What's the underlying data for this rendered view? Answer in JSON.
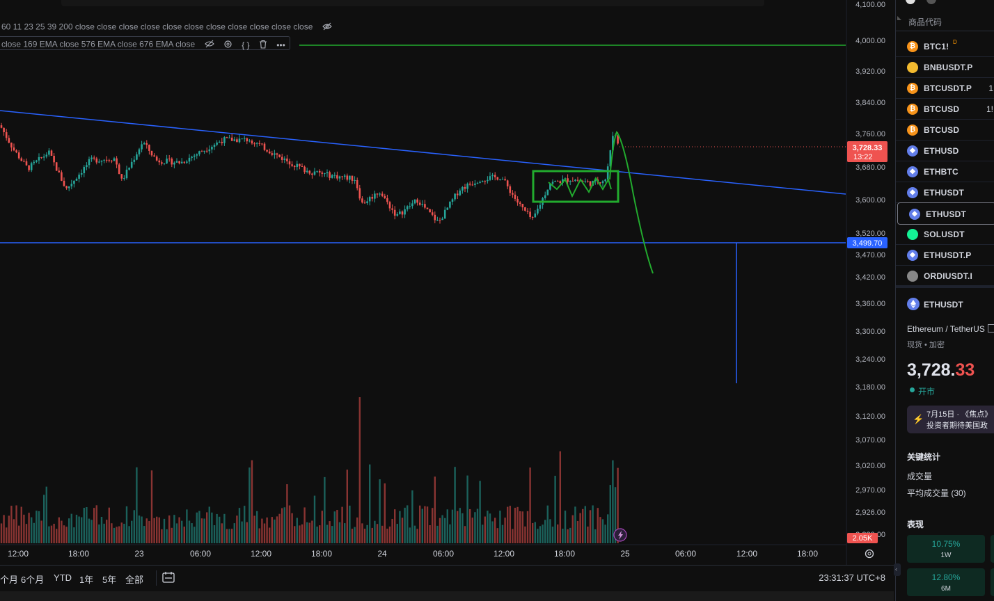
{
  "chart": {
    "indicators_line1": "60 11 23 25 39 200 close close close close close close close close close close close",
    "indicators_line2": "close 169 EMA close 576 EMA close 676 EMA close",
    "price_ticks": [
      "4,100.00",
      "4,000.00",
      "3,920.00",
      "3,840.00",
      "3,760.00",
      "3,680.00",
      "3,600.00",
      "3,520.00",
      "3,470.00",
      "3,420.00",
      "3,360.00",
      "3,300.00",
      "3,240.00",
      "3,180.00",
      "3,120.00",
      "3,070.00",
      "3,020.00",
      "2,970.00",
      "2,926.00",
      "2,880.00"
    ],
    "current_price": "3,728.33",
    "countdown": "13:22",
    "horizontal_level": "3,499.70",
    "volume_label": "2.05K",
    "time_ticks": [
      "12:00",
      "18:00",
      "23",
      "06:00",
      "12:00",
      "18:00",
      "24",
      "06:00",
      "12:00",
      "18:00",
      "25",
      "06:00",
      "12:00",
      "18:00"
    ],
    "colors": {
      "up": "#26a69a",
      "down": "#ef5350",
      "trendline": "#2962ff",
      "drawing": "#22ab2e"
    }
  },
  "bottom_bar": {
    "ranges": [
      "个月",
      "6个月",
      "YTD",
      "1年",
      "5年",
      "全部"
    ],
    "clock": "23:31:37 UTC+8"
  },
  "watchlist": {
    "header": "商品代码",
    "items": [
      {
        "symbol": "BTC1!",
        "badge": "D",
        "icon": "bitcoin-icon",
        "color": "#f7931a",
        "extra": ""
      },
      {
        "symbol": "BNBUSDT.P",
        "badge": "",
        "icon": "bnb-icon",
        "color": "#f3ba2f",
        "extra": ""
      },
      {
        "symbol": "BTCUSDT.P",
        "badge": "",
        "icon": "bitcoin-icon",
        "color": "#f7931a",
        "extra": "1"
      },
      {
        "symbol": "BTCUSD",
        "badge": "",
        "icon": "bitcoin-icon",
        "color": "#f7931a",
        "extra": "1!"
      },
      {
        "symbol": "BTCUSD",
        "badge": "",
        "icon": "bitcoin-icon",
        "color": "#f7931a",
        "extra": ""
      },
      {
        "symbol": "ETHUSD",
        "badge": "",
        "icon": "ethereum-icon",
        "color": "#627eea",
        "extra": ""
      },
      {
        "symbol": "ETHBTC",
        "badge": "",
        "icon": "ethereum-icon",
        "color": "#627eea",
        "extra": ""
      },
      {
        "symbol": "ETHUSDT",
        "badge": "",
        "icon": "ethereum-icon",
        "color": "#627eea",
        "extra": ""
      },
      {
        "symbol": "ETHUSDT",
        "badge": "",
        "icon": "ethereum-icon",
        "color": "#627eea",
        "extra": ""
      },
      {
        "symbol": "SOLUSDT",
        "badge": "",
        "icon": "solana-icon",
        "color": "#14f195",
        "extra": ""
      },
      {
        "symbol": "ETHUSDT.P",
        "badge": "",
        "icon": "ethereum-icon",
        "color": "#627eea",
        "extra": ""
      },
      {
        "symbol": "ORDIUSDT.I",
        "badge": "",
        "icon": "ordi-icon",
        "color": "#888888",
        "extra": ""
      }
    ]
  },
  "details": {
    "symbol": "ETHUSDT",
    "name": "Ethereum / TetherUS",
    "type": "现货 • 加密",
    "price_main": "3,728.",
    "price_frac": "33",
    "market_status": "开市",
    "news_date": "7月15日 · 《焦点》",
    "news_text": "投资者期待美国政",
    "key_stats": "关键统计",
    "volume": "成交量",
    "avg_volume": "平均成交量 (30)",
    "performance": "表现",
    "perf_1w_value": "10.75%",
    "perf_1w_label": "1W",
    "perf_6m_value": "12.80%",
    "perf_6m_label": "6M"
  }
}
